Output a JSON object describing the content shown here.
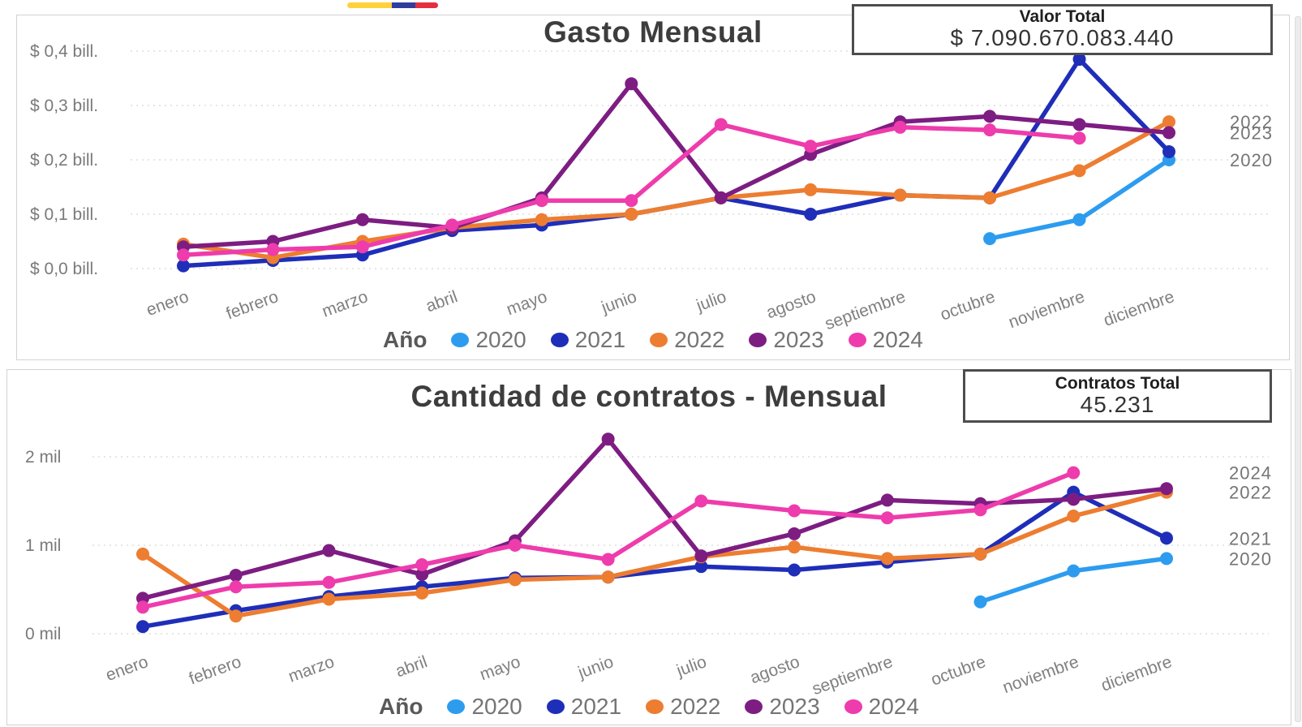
{
  "flag": {
    "colors": [
      "#FFD23B",
      "#2F3E9E",
      "#E62E3E"
    ]
  },
  "chart_data": [
    {
      "type": "line",
      "title": "Gasto Mensual",
      "card": {
        "label": "Valor Total",
        "value": "$ 7.090.670.083.440"
      },
      "legend_title": "Año",
      "legend_position": "bottom",
      "grid": "horizontal-dotted",
      "categories": [
        "enero",
        "febrero",
        "marzo",
        "abril",
        "mayo",
        "junio",
        "julio",
        "agosto",
        "septiembre",
        "octubre",
        "noviembre",
        "diciembre"
      ],
      "yticks": {
        "values": [
          0,
          0.1,
          0.2,
          0.3,
          0.4
        ],
        "labels": [
          "$ 0,0 bill.",
          "$ 0,1 bill.",
          "$ 0,2 bill.",
          "$ 0,3 bill.",
          "$ 0,4 bill."
        ]
      },
      "ylim": [
        0,
        0.42
      ],
      "unit": "bill.",
      "series": [
        {
          "name": "2020",
          "color": "#2D9CEF",
          "values": [
            null,
            null,
            null,
            null,
            null,
            null,
            null,
            null,
            null,
            0.055,
            0.09,
            0.2
          ]
        },
        {
          "name": "2021",
          "color": "#1F2EB8",
          "values": [
            0.005,
            0.015,
            0.025,
            0.07,
            0.08,
            0.1,
            0.13,
            0.1,
            0.135,
            0.13,
            0.385,
            0.215
          ]
        },
        {
          "name": "2022",
          "color": "#ED7D31",
          "values": [
            0.045,
            0.02,
            0.05,
            0.075,
            0.09,
            0.1,
            0.13,
            0.145,
            0.135,
            0.13,
            0.18,
            0.27
          ]
        },
        {
          "name": "2023",
          "color": "#7D1D82",
          "values": [
            0.04,
            0.05,
            0.09,
            0.075,
            0.13,
            0.34,
            0.13,
            0.21,
            0.27,
            0.28,
            0.265,
            0.25
          ]
        },
        {
          "name": "2024",
          "color": "#EE3CAC",
          "values": [
            0.025,
            0.035,
            0.04,
            0.08,
            0.125,
            0.125,
            0.265,
            0.225,
            0.26,
            0.255,
            0.24,
            null
          ]
        }
      ],
      "end_labels": [
        {
          "label": "2022",
          "value": 0.27
        },
        {
          "label": "2023",
          "value": 0.25
        },
        {
          "label": "2020",
          "value": 0.2
        }
      ]
    },
    {
      "type": "line",
      "title": "Cantidad de contratos - Mensual",
      "card": {
        "label": "Contratos Total",
        "value": "45.231"
      },
      "legend_title": "Año",
      "legend_position": "bottom",
      "grid": "horizontal-dotted",
      "categories": [
        "enero",
        "febrero",
        "marzo",
        "abril",
        "mayo",
        "junio",
        "julio",
        "agosto",
        "septiembre",
        "octubre",
        "noviembre",
        "diciembre"
      ],
      "yticks": {
        "values": [
          0,
          1,
          2
        ],
        "labels": [
          "0 mil",
          "1 mil",
          "2 mil"
        ]
      },
      "ylim": [
        0,
        2.4
      ],
      "unit": "mil",
      "series": [
        {
          "name": "2020",
          "color": "#2D9CEF",
          "values": [
            null,
            null,
            null,
            null,
            null,
            null,
            null,
            null,
            null,
            0.36,
            0.71,
            0.85
          ]
        },
        {
          "name": "2021",
          "color": "#1F2EB8",
          "values": [
            0.08,
            0.26,
            0.42,
            0.53,
            0.63,
            0.64,
            0.76,
            0.72,
            0.81,
            0.9,
            1.6,
            1.08
          ]
        },
        {
          "name": "2022",
          "color": "#ED7D31",
          "values": [
            0.9,
            0.2,
            0.39,
            0.46,
            0.61,
            0.64,
            0.87,
            0.98,
            0.85,
            0.9,
            1.33,
            1.6
          ]
        },
        {
          "name": "2023",
          "color": "#7D1D82",
          "values": [
            0.4,
            0.66,
            0.94,
            0.67,
            1.05,
            2.2,
            0.88,
            1.13,
            1.51,
            1.47,
            1.52,
            1.64
          ]
        },
        {
          "name": "2024",
          "color": "#EE3CAC",
          "values": [
            0.3,
            0.53,
            0.58,
            0.78,
            1.0,
            0.84,
            1.5,
            1.39,
            1.31,
            1.4,
            1.82,
            null
          ]
        }
      ],
      "end_labels": [
        {
          "label": "2024",
          "value": 1.82
        },
        {
          "label": "2022",
          "value": 1.6
        },
        {
          "label": "2021",
          "value": 1.08
        },
        {
          "label": "2020",
          "value": 0.85
        }
      ]
    }
  ]
}
